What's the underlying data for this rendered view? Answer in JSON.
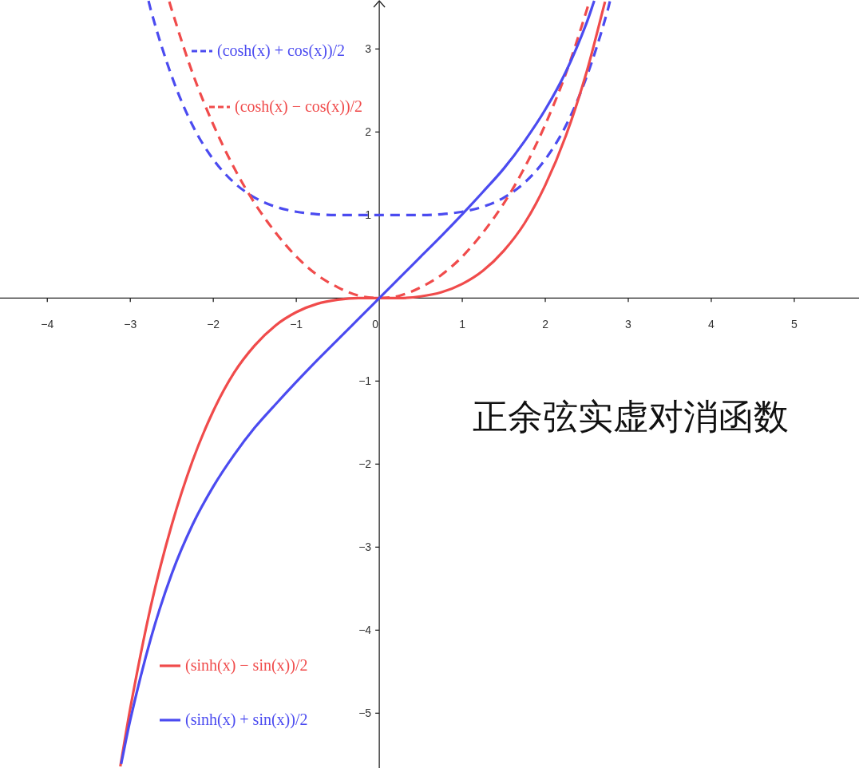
{
  "chart_data": {
    "type": "line",
    "title": "正余弦实虚对消函数",
    "legend": "left",
    "xlim": [
      -4.57,
      5.78
    ],
    "ylim": [
      -5.66,
      3.59
    ],
    "xticks": [
      {
        "value": -4,
        "label": "−4"
      },
      {
        "value": -3,
        "label": "−3"
      },
      {
        "value": -2,
        "label": "−2"
      },
      {
        "value": -1,
        "label": "−1"
      },
      0,
      1,
      2,
      3,
      4,
      5
    ],
    "yticks": [
      {
        "value": -5,
        "label": "−5"
      },
      {
        "value": -4,
        "label": "−4"
      },
      {
        "value": -3,
        "label": "−3"
      },
      {
        "value": -2,
        "label": "−2"
      },
      {
        "value": -1,
        "label": "−1"
      },
      1,
      2,
      3
    ],
    "series": [
      {
        "name": "(cosh(x) + cos(x))/2",
        "color": "#4b4bf0",
        "line_style": "dashed",
        "x": [
          -2.78,
          -2.75,
          -2.5,
          -2.25,
          -2,
          -1.75,
          -1.5,
          -1.25,
          -1,
          -0.75,
          -0.5,
          -0.25,
          0,
          0.25,
          0.5,
          0.75,
          1,
          1.25,
          1.5,
          1.75,
          2,
          2.25,
          2.5,
          2.75,
          2.78
        ],
        "values": [
          3.58,
          3.46,
          2.67,
          2.08,
          1.67,
          1.39,
          1.21,
          1.1,
          1.04,
          1.01,
          1.0,
          1.0,
          1,
          1.0,
          1.0,
          1.01,
          1.04,
          1.1,
          1.21,
          1.39,
          1.67,
          2.08,
          2.67,
          3.46,
          3.58
        ]
      },
      {
        "name": "(cosh(x) − cos(x))/2",
        "color": "#f04b4b",
        "line_style": "dashed",
        "x": [
          -2.53,
          -2.5,
          -2.25,
          -2,
          -1.75,
          -1.5,
          -1.25,
          -1,
          -0.75,
          -0.5,
          -0.25,
          0,
          0.25,
          0.5,
          0.75,
          1,
          1.25,
          1.5,
          1.75,
          2,
          2.25,
          2.5,
          2.53
        ],
        "values": [
          3.57,
          3.47,
          2.71,
          2.09,
          1.57,
          1.14,
          0.79,
          0.5,
          0.28,
          0.13,
          0.03,
          0,
          0.03,
          0.13,
          0.28,
          0.5,
          0.79,
          1.14,
          1.57,
          2.09,
          2.71,
          3.47,
          3.57
        ]
      },
      {
        "name": "(sinh(x) − sin(x))/2",
        "color": "#f04b4b",
        "line_style": "solid",
        "x": [
          -3.12,
          -3,
          -2.75,
          -2.5,
          -2.25,
          -2,
          -1.75,
          -1.5,
          -1.25,
          -1,
          -0.75,
          -0.5,
          -0.25,
          0,
          0.25,
          0.5,
          0.75,
          1,
          1.25,
          1.5,
          1.75,
          2,
          2.25,
          2.5,
          2.72
        ],
        "values": [
          -5.64,
          -4.94,
          -3.7,
          -2.73,
          -1.96,
          -1.36,
          -0.9,
          -0.57,
          -0.33,
          -0.17,
          -0.07,
          -0.02,
          0,
          0,
          0,
          0.02,
          0.07,
          0.17,
          0.33,
          0.57,
          0.9,
          1.36,
          1.96,
          2.73,
          3.57
        ]
      },
      {
        "name": "(sinh(x) + sin(x))/2",
        "color": "#4b4bf0",
        "line_style": "solid",
        "x": [
          -3.11,
          -3,
          -2.75,
          -2.5,
          -2.25,
          -2,
          -1.75,
          -1.5,
          -1.25,
          -1,
          -0.75,
          -0.5,
          -0.25,
          0,
          0.25,
          0.5,
          0.75,
          1,
          1.25,
          1.5,
          1.75,
          2,
          2.25,
          2.5,
          2.59
        ],
        "values": [
          -5.61,
          -5.08,
          -4.09,
          -3.32,
          -2.73,
          -2.27,
          -1.89,
          -1.56,
          -1.28,
          -1.01,
          -0.75,
          -0.5,
          -0.25,
          0,
          0.25,
          0.5,
          0.75,
          1.01,
          1.28,
          1.56,
          1.89,
          2.27,
          2.73,
          3.32,
          3.58
        ]
      }
    ]
  }
}
